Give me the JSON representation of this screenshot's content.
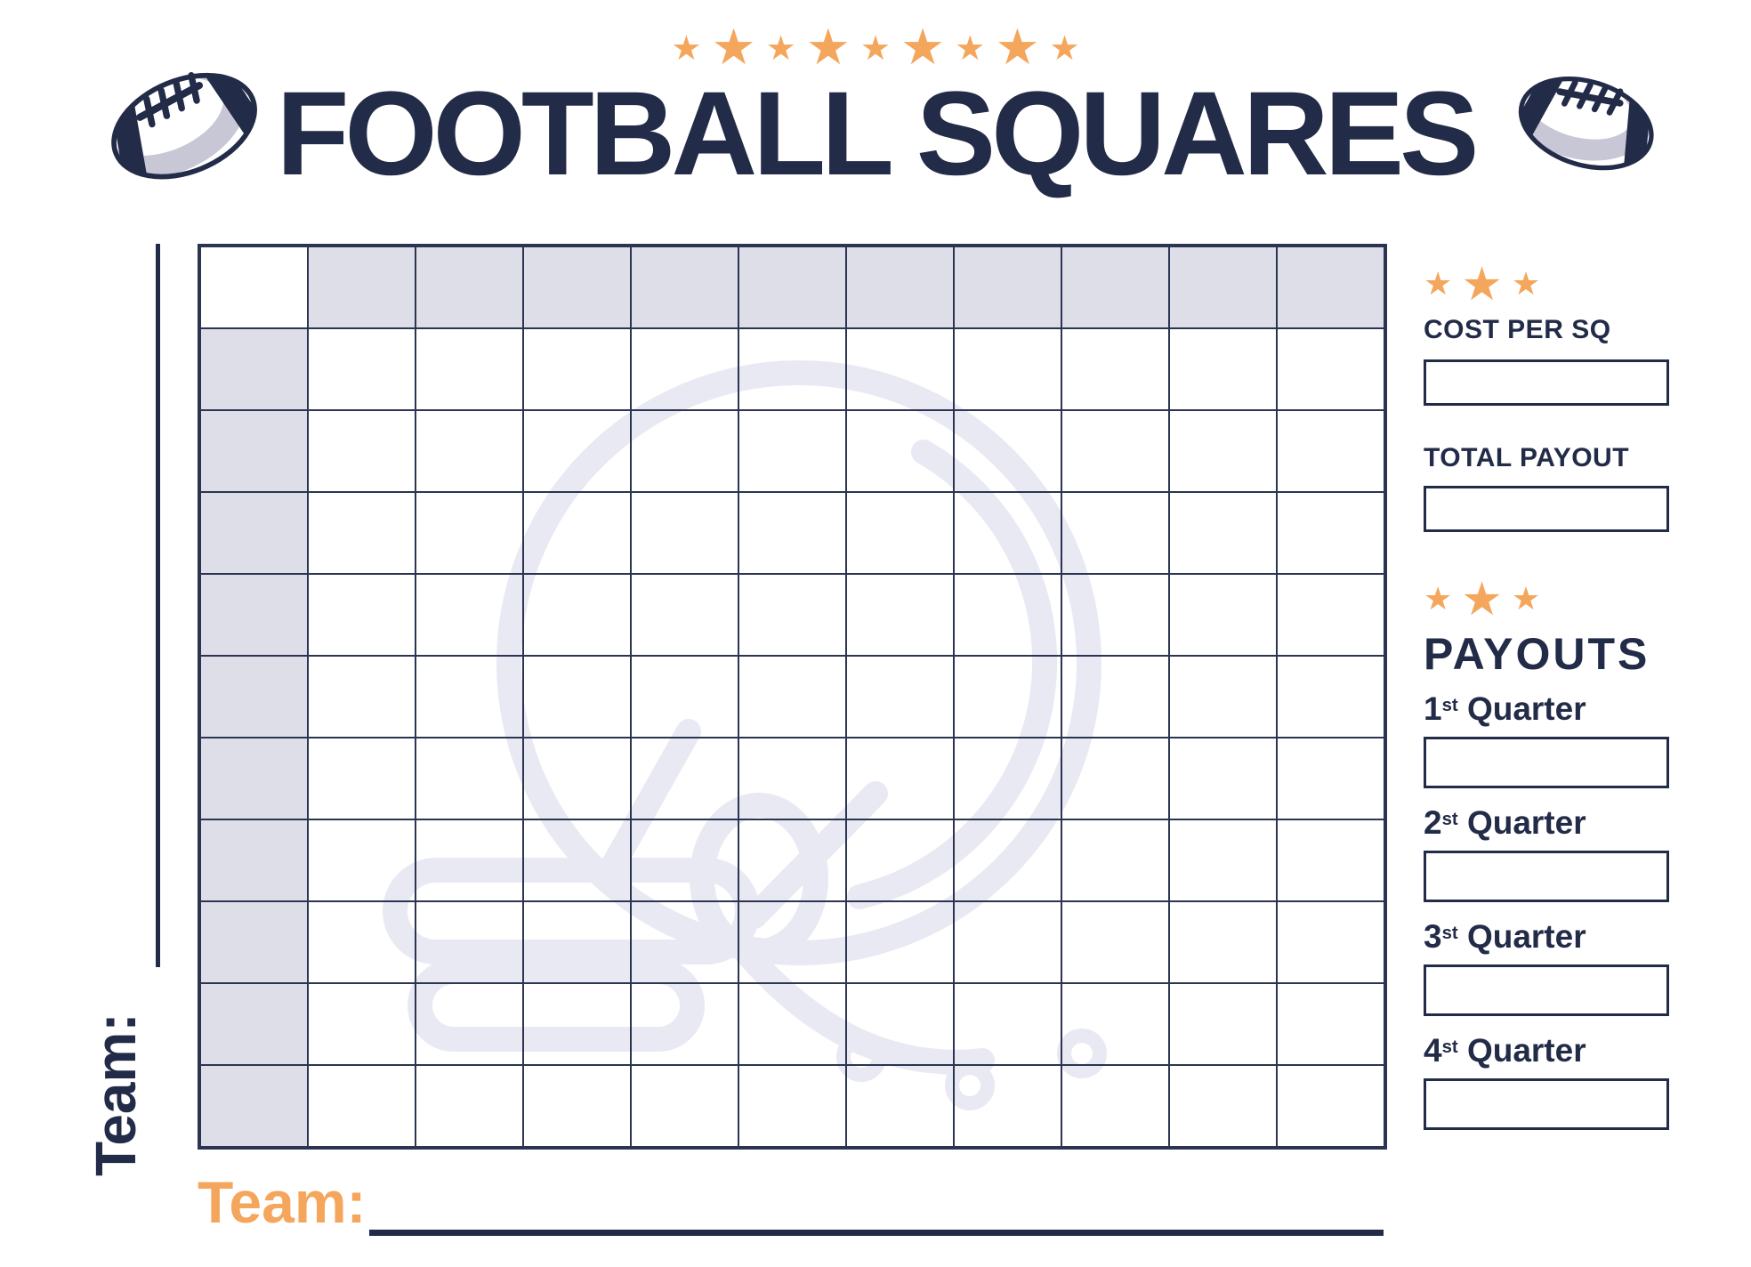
{
  "page": {
    "title": "FOOTBALL SQUARES"
  },
  "decor": {
    "star_char": "★",
    "top_star_count": 9,
    "sidebar_star_count": 3
  },
  "grid": {
    "rows": 11,
    "cols": 11
  },
  "team": {
    "left_label": "Team:",
    "bottom_label": "Team:"
  },
  "sidebar": {
    "cost_label": "COST PER SQ",
    "total_label": "TOTAL PAYOUT",
    "payouts_title": "PAYOUTS",
    "quarters": [
      {
        "num": "1",
        "suffix": "st",
        "word": "Quarter"
      },
      {
        "num": "2",
        "suffix": "st",
        "word": "Quarter"
      },
      {
        "num": "3",
        "suffix": "st",
        "word": "Quarter"
      },
      {
        "num": "4",
        "suffix": "st",
        "word": "Quarter"
      }
    ]
  },
  "colors": {
    "navy": "#222B47",
    "grid_line": "#2B3551",
    "orange": "#F4A65C",
    "header_cell": "#DEDEE8",
    "football_shadow": "#C7C7D6",
    "watermark": "#E9E9F3"
  }
}
